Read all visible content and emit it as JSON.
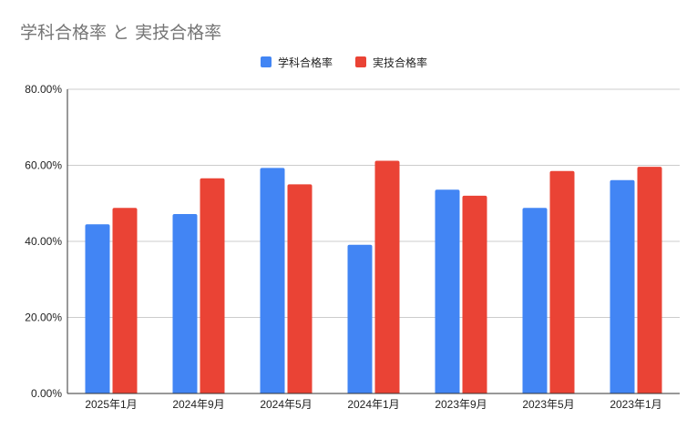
{
  "chart_data": {
    "type": "bar",
    "title": "学科合格率 と 実技合格率",
    "categories": [
      "2025年1月",
      "2024年9月",
      "2024年5月",
      "2024年1月",
      "2023年9月",
      "2023年5月",
      "2023年1月"
    ],
    "series": [
      {
        "name": "学科合格率",
        "color": "#4285f4",
        "values": [
          44.5,
          47.2,
          59.3,
          39.1,
          53.6,
          48.8,
          56.1
        ]
      },
      {
        "name": "実技合格率",
        "color": "#ea4335",
        "values": [
          48.8,
          56.6,
          55.0,
          61.2,
          52.0,
          58.5,
          59.6
        ]
      }
    ],
    "ylim": [
      0,
      80
    ],
    "yticks": [
      0,
      20,
      40,
      60,
      80
    ],
    "ytick_labels": [
      "0.00%",
      "20.00%",
      "40.00%",
      "60.00%",
      "80.00%"
    ],
    "xlabel": "",
    "ylabel": "",
    "grid": true,
    "legend_position": "top-center"
  }
}
